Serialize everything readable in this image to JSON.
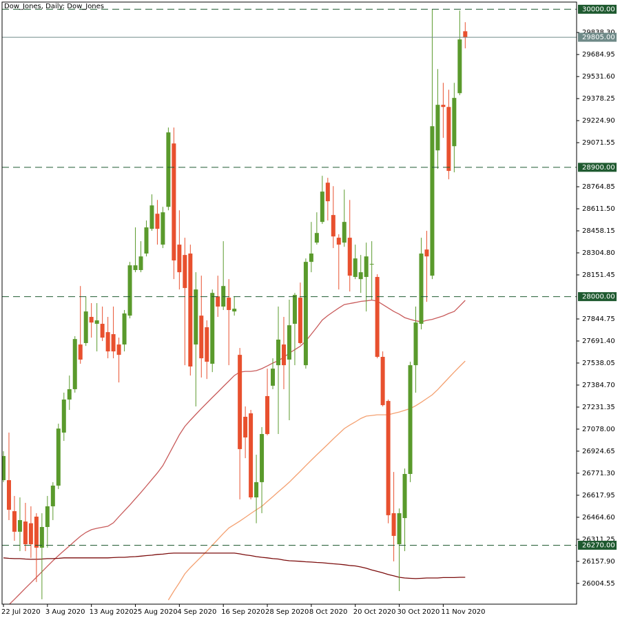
{
  "chart_data": {
    "type": "candlestick",
    "title": "Dow_Jones, Daily:  Dow_Jones",
    "categories": [
      "22 Jul 2020",
      null,
      null,
      null,
      null,
      null,
      null,
      null,
      "3 Aug 2020",
      null,
      null,
      null,
      null,
      null,
      null,
      null,
      "13 Aug 2020",
      null,
      null,
      null,
      null,
      null,
      null,
      null,
      "25 Aug 2020",
      null,
      null,
      null,
      null,
      null,
      null,
      null,
      "4 Sep 2020",
      null,
      null,
      null,
      null,
      null,
      null,
      null,
      "16 Sep 2020",
      null,
      null,
      null,
      null,
      null,
      null,
      null,
      "28 Sep 2020",
      null,
      null,
      null,
      null,
      null,
      null,
      null,
      "8 Oct 2020",
      null,
      null,
      null,
      null,
      null,
      null,
      null,
      "20 Oct 2020",
      null,
      null,
      null,
      null,
      null,
      null,
      null,
      "30 Oct 2020",
      null,
      null,
      null,
      null,
      null,
      null,
      null,
      "11 Nov 2020",
      null,
      null,
      null,
      null
    ],
    "open": [
      26723,
      26723,
      26507,
      26364,
      26435,
      26423,
      26469,
      26253,
      26397,
      26541,
      26685,
      27054,
      27284,
      27356,
      27667,
      27677,
      27859,
      27811,
      27811,
      27753,
      27739,
      27667,
      27667,
      27868,
      28185,
      28185,
      28300,
      28472,
      28577,
      28362,
      28625,
      29066,
      28362,
      28290,
      28300,
      27667,
      27868,
      27787,
      27533,
      28002,
      27931,
      27993,
      27897,
      27595,
      27164,
      27188,
      26603,
      26709,
      27308,
      27380,
      27523,
      27667,
      27562,
      27811,
      27993,
      27523,
      28242,
      28376,
      28520,
      28793,
      28568,
      28410,
      28376,
      28410,
      28137,
      28122,
      28137,
      28228,
      28137,
      27581,
      27274,
      26493,
      26277,
      26459,
      26766,
      27523,
      27811,
      28328,
      28146,
      29018,
      29335,
      29320,
      29047,
      29416,
      29847
    ],
    "close": [
      26891,
      26517,
      26364,
      26445,
      26277,
      26277,
      26253,
      26397,
      26541,
      26685,
      27082,
      27284,
      27356,
      27705,
      27562,
      27897,
      27820,
      27835,
      27715,
      27619,
      27619,
      27595,
      27883,
      28218,
      28218,
      28280,
      28482,
      28635,
      28472,
      28587,
      29143,
      28252,
      28170,
      28060,
      27514,
      28050,
      27571,
      27547,
      28026,
      27931,
      28074,
      27907,
      27916,
      26939,
      27020,
      26603,
      26709,
      27044,
      27044,
      27499,
      27701,
      27523,
      27801,
      28012,
      27677,
      28242,
      28300,
      28443,
      28731,
      28664,
      28419,
      28362,
      28520,
      28146,
      28266,
      28170,
      28280,
      28228,
      27581,
      27245,
      26479,
      26335,
      26493,
      26766,
      27523,
      27820,
      28300,
      28280,
      29186,
      29335,
      29320,
      28875,
      29383,
      29790,
      29805
    ],
    "high": [
      26924,
      27054,
      26613,
      26603,
      26565,
      26541,
      26493,
      26493,
      26613,
      26709,
      27116,
      27332,
      27451,
      27725,
      28074,
      28002,
      27955,
      27955,
      27931,
      27859,
      27931,
      27715,
      27907,
      28242,
      28482,
      28386,
      28530,
      28712,
      28673,
      28625,
      29177,
      29177,
      28601,
      28410,
      28362,
      28170,
      28146,
      27835,
      28050,
      28146,
      28386,
      28122,
      28002,
      27643,
      27236,
      27212,
      26900,
      27092,
      27499,
      27571,
      27931,
      27859,
      27979,
      28026,
      28098,
      28266,
      28520,
      28587,
      28841,
      28827,
      28769,
      28434,
      28745,
      28673,
      28362,
      28290,
      28376,
      28386,
      28156,
      27619,
      27284,
      26780,
      26526,
      26804,
      27547,
      27931,
      28410,
      28458,
      30000,
      29584,
      29488,
      29440,
      29488,
      29991,
      29910
    ],
    "low": [
      26709,
      26445,
      26301,
      26229,
      26229,
      26182,
      26014,
      25894,
      26253,
      26445,
      26661,
      26996,
      27212,
      27332,
      27533,
      27657,
      27715,
      27619,
      27691,
      27571,
      27571,
      27403,
      27619,
      27849,
      28170,
      28170,
      28280,
      28458,
      28362,
      28338,
      28601,
      28122,
      28050,
      27523,
      27451,
      27236,
      27437,
      27427,
      27475,
      27859,
      27907,
      27523,
      27868,
      26589,
      26876,
      26589,
      26423,
      26493,
      27035,
      27356,
      27044,
      27356,
      27140,
      27523,
      27667,
      27499,
      28170,
      28362,
      28506,
      28530,
      28338,
      28050,
      28347,
      28036,
      28122,
      28026,
      27897,
      27979,
      27571,
      27236,
      26423,
      26158,
      25951,
      26229,
      26709,
      27332,
      27772,
      27964,
      28122,
      28889,
      29105,
      28817,
      28865,
      29402,
      29728
    ],
    "up_color": "#5a9a2c",
    "down_color": "#e8502e",
    "lines": [
      {
        "color": "#c85a5a",
        "values": [
          25817,
          25856,
          25894,
          25932,
          25971,
          26009,
          26047,
          26086,
          26124,
          26162,
          26198,
          26232,
          26265,
          26299,
          26332,
          26359,
          26378,
          26388,
          26395,
          26402,
          26426,
          26469,
          26510,
          26550,
          26594,
          26637,
          26682,
          26728,
          26773,
          26824,
          26895,
          26967,
          27039,
          27097,
          27140,
          27181,
          27221,
          27260,
          27298,
          27336,
          27375,
          27413,
          27451,
          27475,
          27480,
          27480,
          27485,
          27499,
          27518,
          27538,
          27554,
          27578,
          27607,
          27631,
          27655,
          27691,
          27739,
          27787,
          27837,
          27868,
          27895,
          27921,
          27945,
          27952,
          27959,
          27967,
          27971,
          27976,
          27969,
          27945,
          27921,
          27897,
          27878,
          27854,
          27842,
          27832,
          27825,
          27835,
          27842,
          27854,
          27866,
          27883,
          27897,
          27935,
          27974
        ]
      },
      {
        "color": "#f4a070",
        "values": [
          null,
          null,
          null,
          null,
          null,
          null,
          null,
          null,
          null,
          null,
          null,
          null,
          null,
          null,
          null,
          null,
          null,
          null,
          null,
          null,
          null,
          null,
          null,
          null,
          null,
          null,
          null,
          null,
          null,
          null,
          25889,
          25951,
          26009,
          26071,
          26114,
          26153,
          26191,
          26229,
          26270,
          26311,
          26352,
          26390,
          26414,
          26438,
          26464,
          26491,
          26517,
          26541,
          26575,
          26608,
          26642,
          26675,
          26709,
          26747,
          26785,
          26824,
          26862,
          26900,
          26936,
          26972,
          27010,
          27046,
          27082,
          27106,
          27128,
          27152,
          27169,
          27173,
          27178,
          27178,
          27178,
          27188,
          27197,
          27209,
          27221,
          27241,
          27265,
          27291,
          27317,
          27353,
          27394,
          27435,
          27475,
          27514,
          27552
        ]
      },
      {
        "color": "#7a0a0a",
        "values": [
          26182,
          26179,
          26177,
          26177,
          26174,
          26172,
          26172,
          26174,
          26177,
          26177,
          26179,
          26182,
          26182,
          26182,
          26182,
          26182,
          26182,
          26182,
          26182,
          26182,
          26184,
          26186,
          26186,
          26189,
          26191,
          26194,
          26198,
          26201,
          26206,
          26208,
          26213,
          26215,
          26215,
          26215,
          26215,
          26215,
          26215,
          26215,
          26215,
          26215,
          26215,
          26215,
          26215,
          26210,
          26203,
          26198,
          26191,
          26186,
          26182,
          26177,
          26174,
          26167,
          26162,
          26160,
          26158,
          26155,
          26153,
          26150,
          26148,
          26145,
          26141,
          26138,
          26134,
          26129,
          26126,
          26119,
          26110,
          26098,
          26088,
          26078,
          26066,
          26057,
          26047,
          26042,
          26040,
          26038,
          26040,
          26042,
          26042,
          26042,
          26045,
          26045,
          26045,
          26047,
          26047
        ]
      }
    ],
    "levels": [
      {
        "value": 30000,
        "label": "30000.00"
      },
      {
        "value": 28900,
        "label": "28900.00"
      },
      {
        "value": 28000,
        "label": "28000.00"
      },
      {
        "value": 26270,
        "label": "26270.00"
      }
    ],
    "level_color": "#1f5a30",
    "last_price": {
      "value": 29805,
      "label": "29805.00"
    },
    "last_price_color": "#6f8a88",
    "ylim": [
      25860,
      30050
    ],
    "yticks": [
      {
        "value": 29838.3,
        "label": "29838.30"
      },
      {
        "value": 29684.95,
        "label": "29684.95"
      },
      {
        "value": 29531.6,
        "label": "29531.60"
      },
      {
        "value": 29378.25,
        "label": "29378.25"
      },
      {
        "value": 29224.9,
        "label": "29224.90"
      },
      {
        "value": 29071.55,
        "label": "29071.55"
      },
      {
        "value": 28764.85,
        "label": "28764.85"
      },
      {
        "value": 28611.5,
        "label": "28611.50"
      },
      {
        "value": 28458.15,
        "label": "28458.15"
      },
      {
        "value": 28304.8,
        "label": "28304.80"
      },
      {
        "value": 28151.45,
        "label": "28151.45"
      },
      {
        "value": 27844.75,
        "label": "27844.75"
      },
      {
        "value": 27691.4,
        "label": "27691.40"
      },
      {
        "value": 27538.05,
        "label": "27538.05"
      },
      {
        "value": 27384.7,
        "label": "27384.70"
      },
      {
        "value": 27231.35,
        "label": "27231.35"
      },
      {
        "value": 27078,
        "label": "27078.00"
      },
      {
        "value": 26924.65,
        "label": "26924.65"
      },
      {
        "value": 26771.3,
        "label": "26771.30"
      },
      {
        "value": 26617.95,
        "label": "26617.95"
      },
      {
        "value": 26464.6,
        "label": "26464.60"
      },
      {
        "value": 26311.25,
        "label": "26311.25"
      },
      {
        "value": 26157.9,
        "label": "26157.90"
      },
      {
        "value": 26004.55,
        "label": "26004.55"
      }
    ],
    "grid": false
  }
}
